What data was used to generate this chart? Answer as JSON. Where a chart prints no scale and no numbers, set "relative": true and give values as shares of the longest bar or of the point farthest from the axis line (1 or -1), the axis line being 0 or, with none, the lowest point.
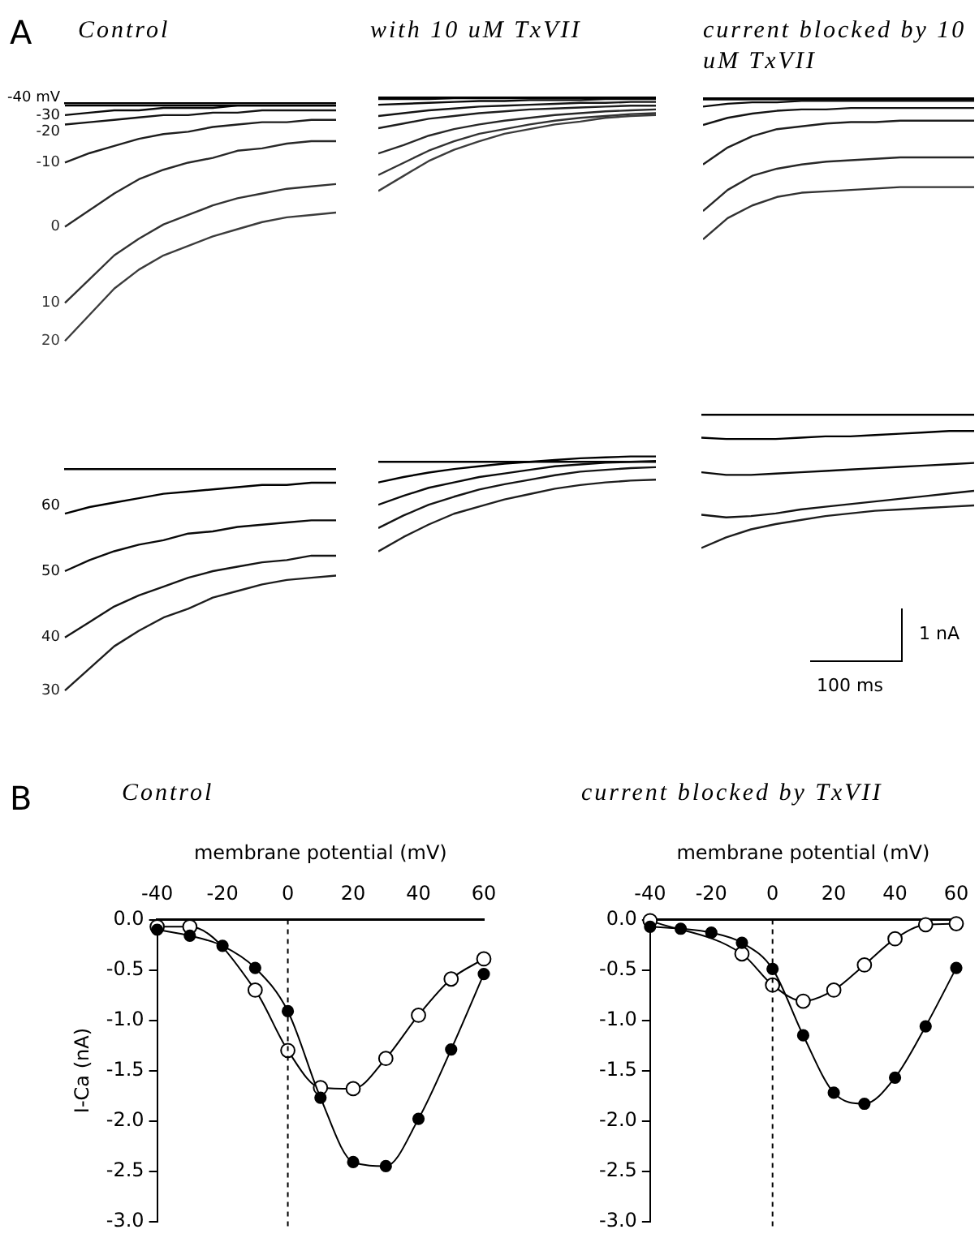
{
  "chart_data": [
    {
      "type": "line",
      "relative": true,
      "title": "Control",
      "annotations": [
        "A"
      ],
      "marker": "none",
      "categories": [
        null,
        null,
        null,
        null,
        null,
        null,
        null,
        null,
        null,
        null,
        null,
        null
      ],
      "series": [
        {
          "name": "-40 mV",
          "color": "#000000",
          "values": [
            -0.01,
            -0.01,
            -0.01,
            -0.01,
            -0.01,
            -0.01,
            -0.01,
            -0.01,
            -0.01,
            -0.01,
            -0.01,
            -0.01
          ]
        },
        {
          "name": "-30",
          "color": "#0a0a0a",
          "values": [
            -0.05,
            -0.04,
            -0.03,
            -0.03,
            -0.02,
            -0.02,
            -0.02,
            -0.01,
            -0.01,
            -0.01,
            -0.01,
            -0.01
          ]
        },
        {
          "name": "-20",
          "color": "#141414",
          "values": [
            -0.09,
            -0.08,
            -0.07,
            -0.06,
            -0.05,
            -0.05,
            -0.04,
            -0.04,
            -0.03,
            -0.03,
            -0.03,
            -0.03
          ]
        },
        {
          "name": "-10",
          "color": "#1e1e1e",
          "values": [
            -0.25,
            -0.21,
            -0.18,
            -0.15,
            -0.13,
            -0.12,
            -0.1,
            -0.09,
            -0.08,
            -0.08,
            -0.07,
            -0.07
          ]
        },
        {
          "name": "0",
          "color": "#282828",
          "values": [
            -0.52,
            -0.45,
            -0.38,
            -0.32,
            -0.28,
            -0.25,
            -0.23,
            -0.2,
            -0.19,
            -0.17,
            -0.16,
            -0.16
          ]
        },
        {
          "name": "10",
          "color": "#323232",
          "values": [
            -0.84,
            -0.74,
            -0.64,
            -0.57,
            -0.51,
            -0.47,
            -0.43,
            -0.4,
            -0.38,
            -0.36,
            -0.35,
            -0.34
          ]
        },
        {
          "name": "20",
          "color": "#3c3c3c",
          "values": [
            -1,
            -0.89,
            -0.78,
            -0.7,
            -0.64,
            -0.6,
            -0.56,
            -0.53,
            -0.5,
            -0.48,
            -0.47,
            -0.46
          ]
        }
      ]
    },
    {
      "type": "line",
      "relative": true,
      "title": "with 10 uM TxVII",
      "marker": "none",
      "categories": [
        null,
        null,
        null,
        null,
        null,
        null,
        null,
        null,
        null,
        null,
        null,
        null
      ],
      "series": [
        {
          "color": "#000000",
          "values": [
            -0.02,
            -0.02,
            -0.02,
            -0.01,
            -0.01,
            -0.01,
            -0.01,
            -0.01,
            -0.01,
            -0.01,
            -0.01,
            -0.01
          ]
        },
        {
          "color": "#0a0a0a",
          "values": [
            -0.08,
            -0.07,
            -0.06,
            -0.05,
            -0.04,
            -0.04,
            -0.03,
            -0.03,
            -0.03,
            -0.02,
            -0.02,
            -0.02
          ]
        },
        {
          "color": "#141414",
          "values": [
            -0.2,
            -0.17,
            -0.14,
            -0.12,
            -0.1,
            -0.09,
            -0.08,
            -0.07,
            -0.06,
            -0.06,
            -0.05,
            -0.05
          ]
        },
        {
          "color": "#1e1e1e",
          "values": [
            -0.33,
            -0.28,
            -0.23,
            -0.2,
            -0.17,
            -0.15,
            -0.13,
            -0.12,
            -0.11,
            -0.1,
            -0.09,
            -0.09
          ]
        },
        {
          "color": "#282828",
          "values": [
            -0.6,
            -0.51,
            -0.41,
            -0.34,
            -0.29,
            -0.25,
            -0.22,
            -0.19,
            -0.17,
            -0.15,
            -0.14,
            -0.13
          ]
        },
        {
          "color": "#323232",
          "values": [
            -0.83,
            -0.7,
            -0.57,
            -0.47,
            -0.39,
            -0.34,
            -0.29,
            -0.25,
            -0.22,
            -0.2,
            -0.18,
            -0.17
          ]
        },
        {
          "color": "#3c3c3c",
          "values": [
            -1,
            -0.84,
            -0.68,
            -0.56,
            -0.47,
            -0.39,
            -0.34,
            -0.29,
            -0.26,
            -0.22,
            -0.2,
            -0.19
          ]
        }
      ]
    },
    {
      "type": "line",
      "relative": true,
      "title": "current blocked by 10 uM TxVII",
      "marker": "none",
      "categories": [
        null,
        null,
        null,
        null,
        null,
        null,
        null,
        null,
        null,
        null,
        null,
        null
      ],
      "series": [
        {
          "color": "#000000",
          "values": [
            -0.01,
            -0.01,
            -0.01,
            -0.01,
            -0.01,
            -0.01,
            -0.01,
            -0.01,
            -0.01,
            -0.01,
            -0.01,
            -0.01
          ]
        },
        {
          "color": "#0a0a0a",
          "values": [
            -0.06,
            -0.04,
            -0.03,
            -0.03,
            -0.02,
            -0.02,
            -0.02,
            -0.02,
            -0.02,
            -0.02,
            -0.02,
            -0.02
          ]
        },
        {
          "color": "#141414",
          "values": [
            -0.19,
            -0.14,
            -0.11,
            -0.09,
            -0.08,
            -0.08,
            -0.07,
            -0.07,
            -0.07,
            -0.07,
            -0.07,
            -0.07
          ]
        },
        {
          "color": "#1e1e1e",
          "values": [
            -0.47,
            -0.35,
            -0.27,
            -0.22,
            -0.2,
            -0.18,
            -0.17,
            -0.17,
            -0.16,
            -0.16,
            -0.16,
            -0.16
          ]
        },
        {
          "color": "#282828",
          "values": [
            -0.8,
            -0.65,
            -0.55,
            -0.5,
            -0.47,
            -0.45,
            -0.44,
            -0.43,
            -0.42,
            -0.42,
            -0.42,
            -0.42
          ]
        },
        {
          "color": "#323232",
          "values": [
            -1,
            -0.85,
            -0.76,
            -0.7,
            -0.67,
            -0.66,
            -0.65,
            -0.64,
            -0.63,
            -0.63,
            -0.63,
            -0.63
          ]
        }
      ]
    },
    {
      "type": "line",
      "relative": true,
      "marker": "none",
      "categories": [
        null,
        null,
        null,
        null,
        null,
        null,
        null,
        null,
        null,
        null,
        null,
        null
      ],
      "series": [
        {
          "name": "60",
          "color": "#000000",
          "values": [
            -0.2,
            -0.17,
            -0.15,
            -0.13,
            -0.11,
            -0.1,
            -0.09,
            -0.08,
            -0.07,
            -0.07,
            -0.06,
            -0.06
          ]
        },
        {
          "name": "50",
          "color": "#0a0a0a",
          "values": [
            -0.46,
            -0.41,
            -0.37,
            -0.34,
            -0.32,
            -0.29,
            -0.28,
            -0.26,
            -0.25,
            -0.24,
            -0.23,
            -0.23
          ]
        },
        {
          "name": "40",
          "color": "#141414",
          "values": [
            -0.76,
            -0.69,
            -0.62,
            -0.57,
            -0.53,
            -0.49,
            -0.46,
            -0.44,
            -0.42,
            -0.41,
            -0.39,
            -0.39
          ]
        },
        {
          "name": "30",
          "color": "#1e1e1e",
          "values": [
            -1,
            -0.9,
            -0.8,
            -0.73,
            -0.67,
            -0.63,
            -0.58,
            -0.55,
            -0.52,
            -0.5,
            -0.49,
            -0.48
          ]
        }
      ]
    },
    {
      "type": "line",
      "relative": true,
      "marker": "none",
      "categories": [
        null,
        null,
        null,
        null,
        null,
        null,
        null,
        null,
        null,
        null,
        null,
        null
      ],
      "series": [
        {
          "color": "#000000",
          "values": [
            -0.23,
            -0.17,
            -0.12,
            -0.08,
            -0.05,
            -0.02,
            0,
            0.02,
            0.04,
            0.05,
            0.06,
            0.06
          ]
        },
        {
          "color": "#0a0a0a",
          "values": [
            -0.48,
            -0.38,
            -0.29,
            -0.23,
            -0.17,
            -0.13,
            -0.09,
            -0.05,
            -0.03,
            -0.01,
            0,
            0.01
          ]
        },
        {
          "color": "#141414",
          "values": [
            -0.74,
            -0.6,
            -0.48,
            -0.39,
            -0.31,
            -0.25,
            -0.2,
            -0.15,
            -0.11,
            -0.09,
            -0.07,
            -0.06
          ]
        },
        {
          "color": "#1e1e1e",
          "values": [
            -1,
            -0.84,
            -0.7,
            -0.58,
            -0.5,
            -0.42,
            -0.36,
            -0.3,
            -0.26,
            -0.23,
            -0.21,
            -0.2
          ]
        }
      ]
    },
    {
      "type": "line",
      "relative": true,
      "annotations": [
        "1 nA",
        "100 ms"
      ],
      "marker": "none",
      "categories": [
        null,
        null,
        null,
        null,
        null,
        null,
        null,
        null,
        null,
        null,
        null,
        null
      ],
      "series": [
        {
          "color": "#000000",
          "values": [
            -0.17,
            -0.18,
            -0.18,
            -0.18,
            -0.17,
            -0.16,
            -0.16,
            -0.15,
            -0.14,
            -0.13,
            -0.12,
            -0.12
          ]
        },
        {
          "color": "#0a0a0a",
          "values": [
            -0.43,
            -0.45,
            -0.45,
            -0.44,
            -0.43,
            -0.42,
            -0.41,
            -0.4,
            -0.39,
            -0.38,
            -0.37,
            -0.36
          ]
        },
        {
          "color": "#141414",
          "values": [
            -0.75,
            -0.77,
            -0.76,
            -0.74,
            -0.71,
            -0.69,
            -0.67,
            -0.65,
            -0.63,
            -0.61,
            -0.59,
            -0.57
          ]
        },
        {
          "color": "#1e1e1e",
          "values": [
            -1,
            -0.92,
            -0.86,
            -0.82,
            -0.79,
            -0.76,
            -0.74,
            -0.72,
            -0.71,
            -0.7,
            -0.69,
            -0.68
          ]
        }
      ]
    },
    {
      "type": "line",
      "title": "Control",
      "annotations": [
        "B"
      ],
      "xlabel": "membrane potential (mV)",
      "ylabel": "I-Ca (nA)",
      "marker": "circle",
      "grid": false,
      "x": [
        -40,
        -30,
        -20,
        -10,
        0,
        10,
        20,
        30,
        40,
        50,
        60
      ],
      "xlim": [
        -40,
        60
      ],
      "xticks": [
        -40,
        -20,
        0,
        20,
        40,
        60
      ],
      "ylim": [
        -3,
        0
      ],
      "yticks": [
        {
          "value": 0,
          "label": "0.0"
        },
        -0.5,
        {
          "value": -1,
          "label": "-1.0"
        },
        -1.5,
        {
          "value": -2,
          "label": "-2.0"
        },
        -2.5,
        {
          "value": -3,
          "label": "-3.0"
        }
      ],
      "ref_lines": [
        {
          "axis": "x",
          "value": 0,
          "line_style": "dashed"
        }
      ],
      "series": [
        {
          "color": "#000000",
          "values": [
            -0.1,
            -0.16,
            -0.26,
            -0.48,
            -0.91,
            -1.77,
            -2.41,
            -2.45,
            -1.98,
            -1.29,
            -0.54
          ]
        },
        {
          "color": "#000000",
          "values": [
            -0.07,
            -0.07,
            null,
            -0.7,
            -1.3,
            -1.67,
            -1.68,
            -1.38,
            -0.95,
            -0.59,
            -0.39
          ]
        }
      ]
    },
    {
      "type": "line",
      "title": "current blocked by TxVII",
      "xlabel": "membrane potential (mV)",
      "marker": "circle",
      "grid": false,
      "x": [
        -40,
        -30,
        -20,
        -10,
        0,
        10,
        20,
        30,
        40,
        50,
        60
      ],
      "xlim": [
        -40,
        60
      ],
      "xticks": [
        -40,
        -20,
        0,
        20,
        40,
        60
      ],
      "ylim": [
        -3,
        0
      ],
      "yticks": [
        {
          "value": 0,
          "label": "0.0"
        },
        -0.5,
        {
          "value": -1,
          "label": "-1.0"
        },
        -1.5,
        {
          "value": -2,
          "label": "-2.0"
        },
        -2.5,
        {
          "value": -3,
          "label": "-3.0"
        }
      ],
      "ref_lines": [
        {
          "axis": "x",
          "value": 0,
          "line_style": "dashed"
        }
      ],
      "series": [
        {
          "color": "#000000",
          "values": [
            -0.07,
            -0.09,
            -0.13,
            -0.23,
            -0.49,
            -1.15,
            -1.72,
            -1.83,
            -1.57,
            -1.06,
            -0.48
          ]
        },
        {
          "color": "#000000",
          "values": [
            -0.01,
            null,
            null,
            -0.34,
            -0.65,
            -0.81,
            -0.7,
            -0.45,
            -0.19,
            -0.05,
            -0.04
          ]
        }
      ]
    }
  ]
}
